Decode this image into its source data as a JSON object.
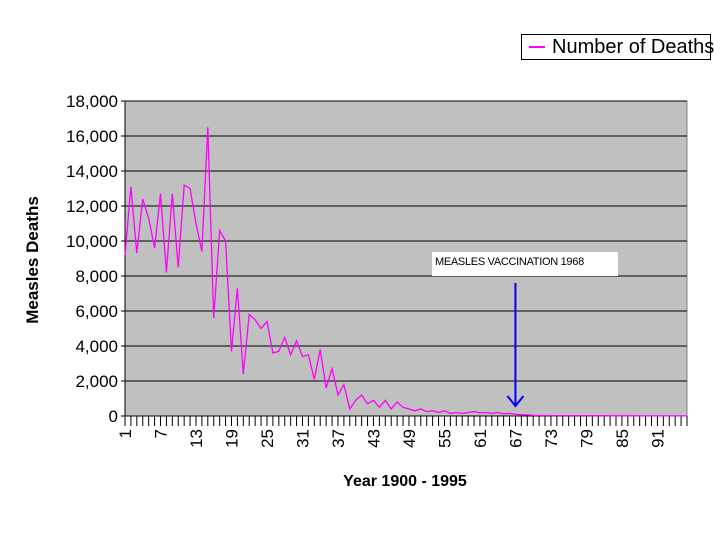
{
  "chart_data": {
    "type": "line",
    "ylabel": "Measles Deaths",
    "xlabel": "Year 1900 - 1995",
    "ylim": [
      0,
      18000
    ],
    "yticks": [
      "0",
      "2,000",
      "4,000",
      "6,000",
      "8,000",
      "10,000",
      "12,000",
      "14,000",
      "16,000",
      "18,000"
    ],
    "ytick_values": [
      0,
      2000,
      4000,
      6000,
      8000,
      10000,
      12000,
      14000,
      16000,
      18000
    ],
    "xticks": [
      "1",
      "7",
      "13",
      "19",
      "25",
      "31",
      "37",
      "43",
      "49",
      "55",
      "61",
      "67",
      "73",
      "79",
      "85",
      "91"
    ],
    "xtick_values": [
      1,
      7,
      13,
      19,
      25,
      31,
      37,
      43,
      49,
      55,
      61,
      67,
      73,
      79,
      85,
      91
    ],
    "xlim": [
      1,
      96
    ],
    "grid": true,
    "legend_position": "top-right",
    "annotation": {
      "text": "MEASLES VACCINATION   1968",
      "arrow_x": 67
    },
    "series": [
      {
        "name": "Number of Deaths",
        "color": "#ff00ff",
        "x": [
          1,
          2,
          3,
          4,
          5,
          6,
          7,
          8,
          9,
          10,
          11,
          12,
          13,
          14,
          15,
          16,
          17,
          18,
          19,
          20,
          21,
          22,
          23,
          24,
          25,
          26,
          27,
          28,
          29,
          30,
          31,
          32,
          33,
          34,
          35,
          36,
          37,
          38,
          39,
          40,
          41,
          42,
          43,
          44,
          45,
          46,
          47,
          48,
          49,
          50,
          51,
          52,
          53,
          54,
          55,
          56,
          57,
          58,
          59,
          60,
          61,
          62,
          63,
          64,
          65,
          66,
          67,
          68,
          69,
          70,
          71,
          72,
          73,
          74,
          75,
          76,
          77,
          78,
          79,
          80,
          81,
          82,
          83,
          84,
          85,
          86,
          87,
          88,
          89,
          90,
          91,
          92,
          93,
          94,
          95,
          96
        ],
        "values": [
          9200,
          13100,
          9300,
          12400,
          11300,
          9600,
          12700,
          8200,
          12700,
          8500,
          13200,
          13000,
          11000,
          9400,
          16500,
          5600,
          10600,
          10000,
          3700,
          7300,
          2400,
          5800,
          5500,
          5000,
          5400,
          3600,
          3700,
          4500,
          3500,
          4300,
          3400,
          3500,
          2100,
          3800,
          1600,
          2700,
          1200,
          1800,
          400,
          900,
          1200,
          700,
          900,
          500,
          900,
          400,
          800,
          500,
          400,
          300,
          400,
          250,
          300,
          200,
          300,
          150,
          200,
          150,
          200,
          250,
          180,
          200,
          150,
          200,
          120,
          150,
          100,
          80,
          60,
          40,
          30,
          30,
          30,
          25,
          20,
          20,
          25,
          20,
          20,
          15,
          15,
          15,
          12,
          10,
          10,
          10,
          10,
          8,
          8,
          8,
          8,
          8,
          5,
          5,
          5,
          5
        ]
      }
    ]
  }
}
